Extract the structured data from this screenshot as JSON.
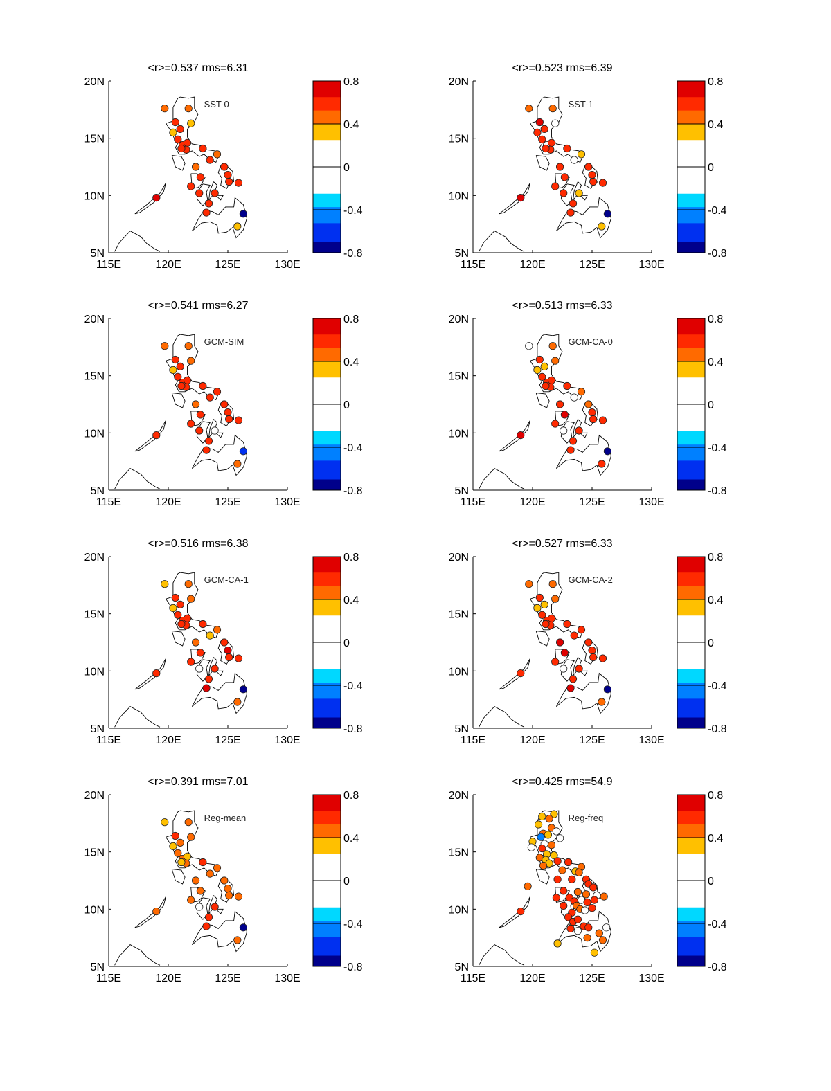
{
  "figure": {
    "x_ticks": [
      "115E",
      "120E",
      "125E",
      "130E"
    ],
    "y_ticks": [
      "5N",
      "10N",
      "15N",
      "20N"
    ],
    "colorbar_ticks": [
      "0.8",
      "0.4",
      "0",
      "-0.4",
      "-0.8"
    ],
    "station_lon": [
      119.7,
      121.7,
      120.6,
      121.9,
      120.4,
      121.0,
      120.8,
      121.2,
      121.6,
      121.5,
      121.1,
      122.9,
      124.1,
      122.3,
      123.5,
      124.7,
      122.7,
      121.9,
      125.0,
      125.1,
      125.9,
      122.6,
      123.9,
      123.4,
      123.2,
      119.0,
      126.3,
      125.8
    ],
    "station_lat": [
      17.6,
      17.6,
      16.4,
      16.3,
      15.5,
      15.8,
      14.9,
      14.4,
      14.6,
      14.0,
      14.1,
      14.1,
      13.6,
      12.5,
      13.1,
      12.5,
      11.6,
      10.8,
      11.8,
      11.2,
      11.1,
      10.2,
      10.2,
      9.3,
      8.5,
      9.8,
      8.4,
      7.3
    ],
    "colorscale": [
      "#ffffff",
      "#ffc000",
      "#ff6a00",
      "#ff2a00",
      "#e00000",
      "#8b0000"
    ],
    "negative_colorscale": [
      "#ffffff",
      "#00d8ff",
      "#0080ff",
      "#0030f0",
      "#00008b"
    ]
  },
  "panels": [
    {
      "title": "<r>=0.537 rms=6.31",
      "label": "SST-0",
      "values": [
        0.5,
        0.4,
        0.55,
        0.35,
        0.3,
        0.6,
        0.55,
        0.6,
        0.6,
        0.6,
        0.6,
        0.6,
        0.5,
        0.5,
        0.55,
        0.6,
        0.6,
        0.55,
        0.65,
        0.6,
        0.55,
        0.6,
        0.6,
        0.65,
        0.65,
        0.7,
        -0.75,
        0.35
      ]
    },
    {
      "title": "<r>=0.523 rms=6.39",
      "label": "SST-1",
      "values": [
        0.45,
        0.45,
        0.7,
        0.0,
        0.55,
        0.6,
        0.55,
        0.0,
        0.6,
        0.55,
        0.6,
        0.65,
        0.3,
        0.55,
        0.2,
        0.6,
        0.65,
        0.55,
        0.6,
        0.55,
        0.55,
        0.6,
        0.3,
        0.55,
        0.6,
        0.7,
        -0.7,
        0.35
      ]
    },
    {
      "title": "<r>=0.541 rms=6.27",
      "label": "GCM-SIM",
      "values": [
        0.45,
        0.45,
        0.55,
        0.4,
        0.3,
        0.6,
        0.55,
        0.6,
        0.6,
        0.6,
        0.6,
        0.6,
        0.55,
        0.5,
        0.6,
        0.6,
        0.6,
        0.65,
        0.6,
        0.65,
        0.55,
        0.6,
        0.0,
        0.65,
        0.65,
        0.65,
        -0.6,
        0.4
      ]
    },
    {
      "title": "<r>=0.513 rms=6.33",
      "label": "GCM-CA-0",
      "values": [
        0.25,
        0.4,
        0.6,
        0.45,
        0.35,
        0.3,
        0.55,
        0.6,
        0.6,
        0.6,
        0.55,
        0.6,
        0.5,
        0.6,
        0.0,
        0.5,
        0.7,
        0.6,
        0.6,
        0.65,
        0.55,
        0.0,
        0.6,
        0.65,
        0.65,
        0.7,
        -0.75,
        0.55
      ]
    },
    {
      "title": "<r>=0.516 rms=6.38",
      "label": "GCM-CA-1",
      "values": [
        0.35,
        0.45,
        0.55,
        0.4,
        0.3,
        0.55,
        0.55,
        0.6,
        0.6,
        0.6,
        0.6,
        0.55,
        0.4,
        0.5,
        0.3,
        0.6,
        0.6,
        0.55,
        0.7,
        0.6,
        0.6,
        0.0,
        0.55,
        0.65,
        0.7,
        0.6,
        -0.75,
        0.5
      ]
    },
    {
      "title": "<r>=0.527 rms=6.33",
      "label": "GCM-CA-2",
      "values": [
        0.4,
        0.4,
        0.55,
        0.4,
        0.35,
        0.3,
        0.55,
        0.6,
        0.6,
        0.6,
        0.55,
        0.6,
        0.55,
        0.7,
        0.6,
        0.55,
        0.7,
        0.65,
        0.6,
        0.65,
        0.55,
        0.0,
        0.65,
        0.6,
        0.7,
        0.6,
        -0.75,
        0.45
      ]
    },
    {
      "title": "<r>=0.391 rms=7.01",
      "label": "Reg-mean",
      "values": [
        0.3,
        0.4,
        0.6,
        0.4,
        0.3,
        0.45,
        0.5,
        0.45,
        0.3,
        0.5,
        0.35,
        0.55,
        0.45,
        0.45,
        0.5,
        0.4,
        0.5,
        0.5,
        0.45,
        0.45,
        0.45,
        0.0,
        0.55,
        0.55,
        0.55,
        0.45,
        -0.75,
        0.45
      ]
    }
  ],
  "panel_dense": {
    "title": "<r>=0.425 rms=54.9",
    "label": "Reg-freq",
    "stations": [
      [
        121.8,
        18.3,
        0.3
      ],
      [
        120.8,
        18.1,
        0.35
      ],
      [
        121.4,
        17.9,
        0.4
      ],
      [
        120.5,
        17.4,
        0.35
      ],
      [
        121.6,
        17.1,
        0.45
      ],
      [
        122.0,
        16.8,
        0.0
      ],
      [
        120.9,
        16.6,
        0.4
      ],
      [
        121.3,
        16.5,
        0.35
      ],
      [
        120.7,
        16.3,
        -0.45
      ],
      [
        122.3,
        16.2,
        0.0
      ],
      [
        120.0,
        15.9,
        0.35
      ],
      [
        121.0,
        15.7,
        0.0
      ],
      [
        121.6,
        15.6,
        0.5
      ],
      [
        120.8,
        15.3,
        0.55
      ],
      [
        119.9,
        15.4,
        0.0
      ],
      [
        121.2,
        14.8,
        0.35
      ],
      [
        121.8,
        14.7,
        0.3
      ],
      [
        120.6,
        14.5,
        0.5
      ],
      [
        121.1,
        14.3,
        0.3
      ],
      [
        122.1,
        14.2,
        0.6
      ],
      [
        121.4,
        14.0,
        0.35
      ],
      [
        120.9,
        13.8,
        0.4
      ],
      [
        123.0,
        14.1,
        0.6
      ],
      [
        124.1,
        13.7,
        0.4
      ],
      [
        122.5,
        13.4,
        0.4
      ],
      [
        123.6,
        13.3,
        0.35
      ],
      [
        123.9,
        13.2,
        0.5
      ],
      [
        124.5,
        12.6,
        0.6
      ],
      [
        122.1,
        12.6,
        0.6
      ],
      [
        123.3,
        12.6,
        0.6
      ],
      [
        124.7,
        12.2,
        0.55
      ],
      [
        119.6,
        12.0,
        0.45
      ],
      [
        122.6,
        11.6,
        0.55
      ],
      [
        123.8,
        11.5,
        0.5
      ],
      [
        124.5,
        11.3,
        0.4
      ],
      [
        125.1,
        11.9,
        0.55
      ],
      [
        125.4,
        11.2,
        0.0
      ],
      [
        126.0,
        11.1,
        0.5
      ],
      [
        122.0,
        11.0,
        0.6
      ],
      [
        123.1,
        11.0,
        0.55
      ],
      [
        123.5,
        10.7,
        0.55
      ],
      [
        124.1,
        10.8,
        0.0
      ],
      [
        124.6,
        10.6,
        0.6
      ],
      [
        125.2,
        10.8,
        0.55
      ],
      [
        122.6,
        10.3,
        0.6
      ],
      [
        123.7,
        10.3,
        0.45
      ],
      [
        124.0,
        10.0,
        0.5
      ],
      [
        124.4,
        9.9,
        0.0
      ],
      [
        125.0,
        10.1,
        0.55
      ],
      [
        123.3,
        9.7,
        0.6
      ],
      [
        123.0,
        9.3,
        0.65
      ],
      [
        123.4,
        8.9,
        0.6
      ],
      [
        123.8,
        9.1,
        0.6
      ],
      [
        124.3,
        8.5,
        0.6
      ],
      [
        124.7,
        8.4,
        0.55
      ],
      [
        123.2,
        8.3,
        0.6
      ],
      [
        123.8,
        8.1,
        0.0
      ],
      [
        126.2,
        8.4,
        0.0
      ],
      [
        125.6,
        7.9,
        0.5
      ],
      [
        124.6,
        7.5,
        0.4
      ],
      [
        125.9,
        7.3,
        0.45
      ],
      [
        122.1,
        7.0,
        0.3
      ],
      [
        125.2,
        6.2,
        0.3
      ],
      [
        119.0,
        9.8,
        0.65
      ]
    ]
  }
}
